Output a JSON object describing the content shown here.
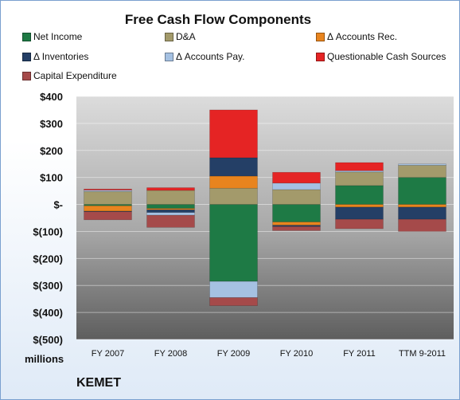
{
  "chart_data": {
    "type": "bar",
    "stacked": true,
    "title": "Free Cash Flow Components",
    "categories": [
      "FY 2007",
      "FY 2008",
      "FY 2009",
      "FY 2010",
      "FY 2011",
      "TTM 9-2011"
    ],
    "y_tick_labels": [
      "$400",
      "$300",
      "$200",
      "$100",
      "$-",
      "$(100)",
      "$(200)",
      "$(300)",
      "$(400)",
      "$(500)"
    ],
    "ylim": [
      -500,
      400
    ],
    "units_label": "millions",
    "company_label": "KEMET",
    "legend_position": "top",
    "series": [
      {
        "name": "Net Income",
        "color": "#1e7a45",
        "values": [
          -5,
          -15,
          -285,
          -65,
          70,
          100
        ]
      },
      {
        "name": "D&A",
        "color": "#a39a6b",
        "values": [
          48,
          52,
          60,
          55,
          50,
          45
        ]
      },
      {
        "name": "Δ Accounts Rec.",
        "color": "#e8841e",
        "values": [
          -20,
          -5,
          45,
          -12,
          -10,
          -10
        ]
      },
      {
        "name": "Δ Inventories",
        "color": "#243f66",
        "values": [
          -2,
          -10,
          68,
          -5,
          -45,
          -45
        ]
      },
      {
        "name": "Δ Accounts Pay.",
        "color": "#a5c1e2",
        "values": [
          5,
          -10,
          -60,
          24,
          5,
          5
        ]
      },
      {
        "name": "Questionable Cash Sources",
        "color": "#e52424",
        "values": [
          4,
          10,
          177,
          40,
          30,
          0
        ]
      },
      {
        "name": "Capital Expenditure",
        "color": "#a54a4a",
        "values": [
          -30,
          -45,
          -30,
          -15,
          -35,
          -45
        ]
      }
    ]
  }
}
